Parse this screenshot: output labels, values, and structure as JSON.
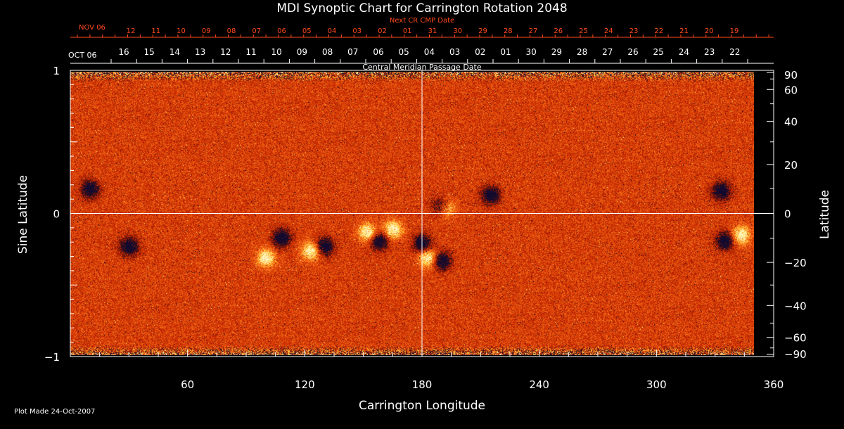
{
  "chart_data": {
    "type": "heatmap",
    "title": "MDI Synoptic Chart for Carrington Rotation 2048",
    "xlabel": "Carrington Longitude",
    "ylabel": "Sine Latitude",
    "ylabel_right": "Latitude",
    "xlim": [
      0,
      360
    ],
    "ylim": [
      -1,
      1
    ],
    "x_ticks": [
      "60",
      "120",
      "180",
      "240",
      "300",
      "360"
    ],
    "x_tick_values": [
      60,
      120,
      180,
      240,
      300,
      360
    ],
    "y_ticks": [
      "1",
      "0",
      "−1"
    ],
    "y_tick_values": [
      1,
      0,
      -1
    ],
    "right_ticks": [
      "90",
      "60",
      "40",
      "20",
      "0",
      "−20",
      "−40",
      "−60",
      "−90"
    ],
    "right_tick_values": [
      90,
      60,
      40,
      20,
      0,
      -20,
      -40,
      -60,
      -90
    ],
    "top_axis_red": {
      "start_label": "NOV 06",
      "title": "Next CR CMP Date",
      "labels": [
        "12",
        "11",
        "10",
        "09",
        "08",
        "07",
        "06",
        "05",
        "04",
        "03",
        "02",
        "01",
        "31",
        "30",
        "29",
        "28",
        "27",
        "26",
        "25",
        "24",
        "23",
        "22",
        "21",
        "20",
        "19"
      ],
      "color": "#ff4a1c"
    },
    "top_axis_white": {
      "start_label": "OCT 06",
      "title": "Central Meridian Passage Date",
      "labels": [
        "16",
        "15",
        "14",
        "13",
        "12",
        "11",
        "10",
        "09",
        "08",
        "07",
        "06",
        "05",
        "04",
        "03",
        "02",
        "01",
        "30",
        "29",
        "28",
        "27",
        "26",
        "25",
        "24",
        "23",
        "22"
      ]
    },
    "colormap": [
      "#100a30",
      "#4a1010",
      "#c22000",
      "#e04a08",
      "#ff7a20",
      "#ffd23a",
      "#fff6c8"
    ],
    "active_regions": [
      {
        "lon": 130,
        "slat": -0.22,
        "polarity": "negative"
      },
      {
        "lon": 123,
        "slat": -0.25,
        "polarity": "positive"
      },
      {
        "lon": 158,
        "slat": -0.18,
        "polarity": "negative"
      },
      {
        "lon": 152,
        "slat": -0.12,
        "polarity": "positive"
      },
      {
        "lon": 183,
        "slat": -0.3,
        "polarity": "positive"
      },
      {
        "lon": 190,
        "slat": -0.32,
        "polarity": "negative"
      },
      {
        "lon": 180,
        "slat": -0.2,
        "polarity": "negative"
      },
      {
        "lon": 190,
        "slat": 0.06,
        "polarity": "negative"
      },
      {
        "lon": 192,
        "slat": 0.05,
        "polarity": "positive"
      },
      {
        "lon": 215,
        "slat": 0.14,
        "polarity": "negative"
      },
      {
        "lon": 108,
        "slat": -0.16,
        "polarity": "negative"
      },
      {
        "lon": 335,
        "slat": -0.18,
        "polarity": "negative"
      },
      {
        "lon": 343,
        "slat": -0.14,
        "polarity": "positive"
      },
      {
        "lon": 333,
        "slat": 0.17,
        "polarity": "negative"
      },
      {
        "lon": 10,
        "slat": 0.18,
        "polarity": "negative"
      },
      {
        "lon": 30,
        "slat": -0.22,
        "polarity": "negative"
      },
      {
        "lon": 100,
        "slat": -0.3,
        "polarity": "positive"
      },
      {
        "lon": 165,
        "slat": -0.1,
        "polarity": "positive"
      }
    ]
  },
  "footer": {
    "plot_made": "Plot Made 24-Oct-2007"
  }
}
